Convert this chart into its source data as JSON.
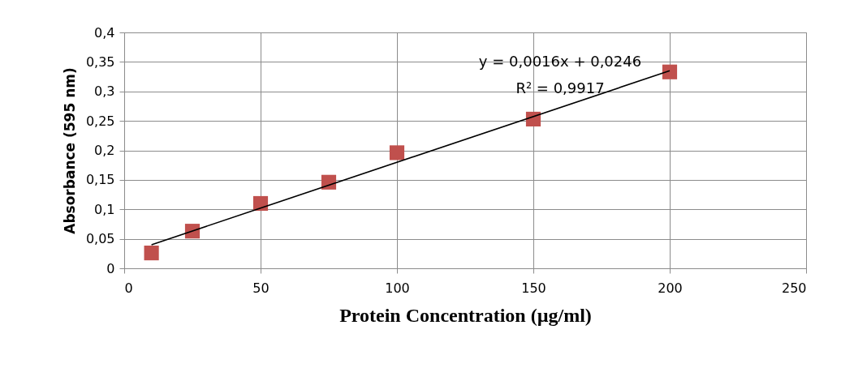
{
  "chart_data": {
    "type": "scatter",
    "xlabel": "Protein Concentration (µg/ml)",
    "ylabel": "Absorbance (595 nm)",
    "x": [
      10,
      25,
      50,
      75,
      100,
      150,
      200
    ],
    "series": [
      {
        "color": "#c0504d",
        "marker": "square",
        "values": [
          0.026,
          0.063,
          0.11,
          0.146,
          0.196,
          0.253,
          0.333
        ]
      },
      {
        "type": "line",
        "color": "#000000",
        "line_style": "solid",
        "marker": "none",
        "x": [
          10,
          200
        ],
        "values": [
          0.04,
          0.335
        ]
      }
    ],
    "xlim": [
      0,
      250
    ],
    "xticks": [
      0,
      50,
      100,
      150,
      200,
      250
    ],
    "ylim": [
      0,
      0.4
    ],
    "yticks": [
      {
        "value": 0,
        "label": "0"
      },
      {
        "value": 0.05,
        "label": "0,05"
      },
      {
        "value": 0.1,
        "label": "0,1"
      },
      {
        "value": 0.15,
        "label": "0,15"
      },
      {
        "value": 0.2,
        "label": "0,2"
      },
      {
        "value": 0.25,
        "label": "0,25"
      },
      {
        "value": 0.3,
        "label": "0,3"
      },
      {
        "value": 0.35,
        "label": "0,35"
      },
      {
        "value": 0.4,
        "label": "0,4"
      }
    ],
    "grid": true,
    "annotations": [
      "y = 0,0016x + 0,0246",
      "R² = 0,9917"
    ]
  }
}
